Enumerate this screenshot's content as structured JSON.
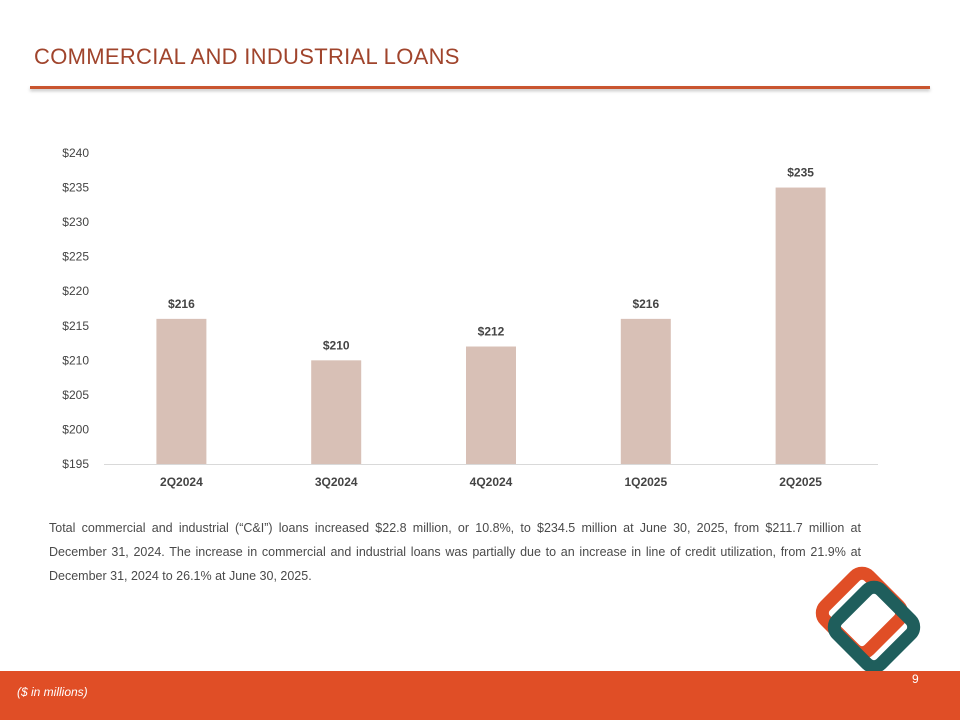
{
  "slide": {
    "title": "COMMERCIAL AND INDUSTRIAL LOANS",
    "body_text": "Total commercial and industrial (“C&I”) loans increased $22.8 million, or 10.8%, to $234.5 million at June 30, 2025, from $211.7 million at December 31, 2024. The increase in commercial and industrial loans was partially due to an increase in line of credit utilization, from 21.9% at December 31, 2024 to 26.1% at June 30, 2025.",
    "footer_note": "($ in millions)",
    "page_number": "9"
  },
  "colors": {
    "accent": "#e04e26",
    "title": "#a0442c",
    "bar": "#d8c0b6",
    "logo_orange": "#e04e26",
    "logo_teal": "#1f5e5c"
  },
  "chart_data": {
    "type": "bar",
    "title": "",
    "xlabel": "",
    "ylabel": "",
    "categories": [
      "2Q2024",
      "3Q2024",
      "4Q2024",
      "1Q2025",
      "2Q2025"
    ],
    "values": [
      216,
      210,
      212,
      216,
      235
    ],
    "data_labels": [
      "$216",
      "$210",
      "$212",
      "$216",
      "$235"
    ],
    "ylim": [
      195,
      240
    ],
    "yticks": [
      195,
      200,
      205,
      210,
      215,
      220,
      225,
      230,
      235,
      240
    ],
    "ytick_labels": [
      "$195",
      "$200",
      "$205",
      "$210",
      "$215",
      "$220",
      "$225",
      "$230",
      "$235",
      "$240"
    ],
    "grid": false,
    "legend": "none"
  }
}
